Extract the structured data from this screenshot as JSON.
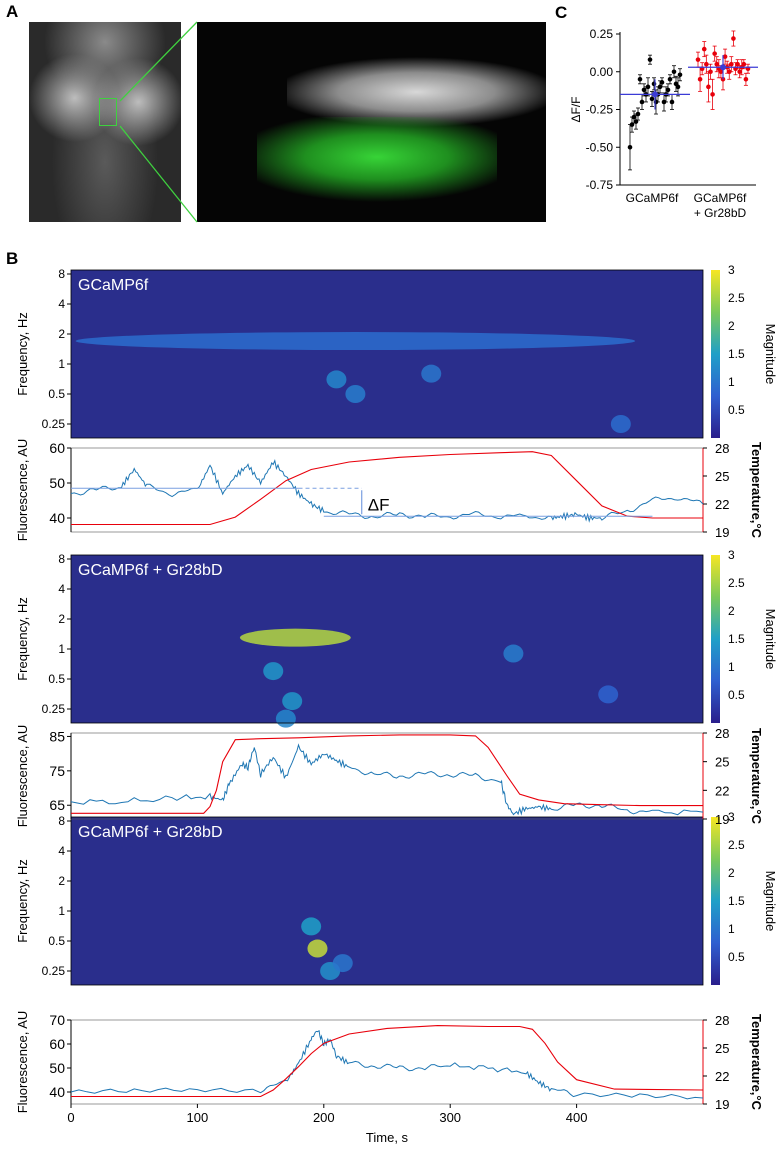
{
  "panel_labels": {
    "a": "A",
    "b": "B",
    "c": "C"
  },
  "colors": {
    "trace": "#1f77b4",
    "temperature": "#e8000b",
    "gcamp_points": "#000000",
    "gr28_points": "#e8000b",
    "mean_marker": "#3b3bd6",
    "microscopy_green": "#3fd13f",
    "spectrogram_low": "#2a2e8c",
    "spectrogram_high": "#f6e623"
  },
  "chart_data": [
    {
      "id": "c-dotplot",
      "type": "scatter",
      "ylabel": "ΔF/F",
      "ylim": [
        -0.75,
        0.25
      ],
      "yticks": [
        "0.25",
        "0.00",
        "-0.25",
        "-0.50",
        "-0.75"
      ],
      "ytick_values": [
        0.25,
        0.0,
        -0.25,
        -0.5,
        -0.75
      ],
      "categories": [
        "GCaMP6f",
        "GCaMP6f\n+ Gr28bD"
      ],
      "category_lines": [
        [
          "GCaMP6f"
        ],
        [
          "GCaMP6f",
          "+ Gr28bD"
        ]
      ],
      "series": [
        {
          "values": [
            -0.5,
            -0.35,
            -0.3,
            -0.33,
            -0.28,
            -0.05,
            -0.2,
            -0.12,
            -0.15,
            -0.1,
            0.08,
            -0.18,
            -0.08,
            -0.2,
            -0.15,
            -0.1,
            -0.07,
            -0.2,
            -0.15,
            -0.12,
            -0.05,
            -0.2,
            0.0,
            -0.08,
            -0.1,
            -0.02
          ],
          "errors": [
            0.15,
            0.05,
            0.04,
            0.05,
            0.04,
            0.03,
            0.05,
            0.04,
            0.05,
            0.06,
            0.03,
            0.05,
            0.04,
            0.08,
            0.05,
            0.04,
            0.03,
            0.06,
            0.05,
            0.04,
            0.03,
            0.05,
            0.04,
            0.05,
            0.06,
            0.04
          ],
          "mean": -0.15,
          "sd": 0.1
        },
        {
          "values": [
            0.08,
            -0.05,
            0.02,
            0.15,
            0.05,
            -0.1,
            0.0,
            -0.15,
            0.12,
            0.05,
            0.02,
            0.0,
            -0.05,
            0.1,
            0.03,
            0.0,
            0.05,
            0.22,
            0.02,
            0.05,
            0.0,
            0.03,
            0.05,
            -0.05,
            0.02
          ],
          "errors": [
            0.05,
            0.08,
            0.04,
            0.05,
            0.06,
            0.1,
            0.05,
            0.1,
            0.05,
            0.05,
            0.06,
            0.04,
            0.07,
            0.05,
            0.04,
            0.05,
            0.05,
            0.05,
            0.04,
            0.03,
            0.04,
            0.05,
            0.03,
            0.04,
            0.03
          ],
          "mean": 0.03,
          "sd": 0.08
        }
      ]
    },
    {
      "id": "b-spec-1",
      "type": "heatmap",
      "label": "GCaMP6f",
      "ylabel": "Frequency, Hz",
      "yticks": [
        "8",
        "4",
        "2",
        "1",
        "0.5",
        "0.25"
      ],
      "ytick_values": [
        8,
        4,
        2,
        1,
        0.5,
        0.25
      ],
      "ylog": true,
      "xlim": [
        0,
        500
      ],
      "colorbar": {
        "label": "Magnitude",
        "ticks": [
          "3",
          "2.5",
          "2",
          "1.5",
          "1",
          "0.5"
        ],
        "tick_values": [
          3,
          2.5,
          2,
          1.5,
          1,
          0.5
        ],
        "range": [
          0,
          3
        ]
      },
      "blobs": [
        {
          "t": 10,
          "t_end": 440,
          "f": 1.7,
          "magnitude": 0.9
        },
        {
          "t": 210,
          "f": 0.7,
          "magnitude": 1.2
        },
        {
          "t": 225,
          "f": 0.5,
          "magnitude": 1.1
        },
        {
          "t": 285,
          "f": 0.8,
          "magnitude": 1.0
        },
        {
          "t": 435,
          "f": 0.25,
          "magnitude": 0.9
        }
      ]
    },
    {
      "id": "b-trace-1",
      "type": "line",
      "ylabel": "Fluorescence, AU",
      "ylabel_right": "Temperature,°C",
      "ylim": [
        36,
        60
      ],
      "yticks": [
        "60",
        "50",
        "40"
      ],
      "ytick_values": [
        60,
        50,
        40
      ],
      "ylim_right": [
        19,
        28
      ],
      "yticks_right": [
        "28",
        "25",
        "22",
        "19"
      ],
      "ytick_values_right": [
        28,
        25,
        22,
        19
      ],
      "xlim": [
        0,
        500
      ],
      "annotation": "ΔF",
      "baseline_high": 48.5,
      "baseline_low": 40.5,
      "fluorescence": {
        "x": [
          0,
          20,
          40,
          50,
          60,
          80,
          100,
          110,
          120,
          130,
          140,
          150,
          160,
          170,
          180,
          190,
          200,
          220,
          240,
          260,
          280,
          300,
          320,
          340,
          360,
          380,
          390,
          400,
          410,
          420,
          440,
          460,
          480,
          500
        ],
        "y": [
          47,
          48,
          49,
          54,
          49,
          47,
          48,
          55,
          47,
          52,
          55,
          50,
          56,
          52,
          47,
          44,
          42,
          41,
          40.5,
          41,
          40.5,
          40.5,
          41,
          40.5,
          40.5,
          40,
          40.5,
          41,
          40,
          40,
          42,
          45,
          46,
          44
        ]
      },
      "temperature": {
        "x": [
          0,
          110,
          130,
          150,
          170,
          190,
          220,
          260,
          300,
          340,
          365,
          380,
          400,
          420,
          440,
          460,
          500
        ],
        "y": [
          19.8,
          19.8,
          20.6,
          22.5,
          24.5,
          25.7,
          26.5,
          27.0,
          27.3,
          27.5,
          27.6,
          27.2,
          24.5,
          21.8,
          20.7,
          20.5,
          20.5
        ]
      }
    },
    {
      "id": "b-spec-2",
      "type": "heatmap",
      "label": "GCaMP6f + Gr28bD",
      "ylabel": "Frequency, Hz",
      "yticks": [
        "8",
        "4",
        "2",
        "1",
        "0.5",
        "0.25"
      ],
      "ytick_values": [
        8,
        4,
        2,
        1,
        0.5,
        0.25
      ],
      "ylog": true,
      "xlim": [
        0,
        500
      ],
      "colorbar": {
        "label": "Magnitude",
        "ticks": [
          "3",
          "2.5",
          "2",
          "1.5",
          "1",
          "0.5"
        ],
        "tick_values": [
          3,
          2.5,
          2,
          1.5,
          1,
          0.5
        ],
        "range": [
          0,
          3
        ]
      },
      "blobs": [
        {
          "t": 140,
          "t_end": 215,
          "f": 1.3,
          "magnitude": 2.6
        },
        {
          "t": 160,
          "f": 0.6,
          "magnitude": 1.4
        },
        {
          "t": 175,
          "f": 0.3,
          "magnitude": 1.4
        },
        {
          "t": 170,
          "f": 0.2,
          "magnitude": 1.2
        },
        {
          "t": 350,
          "f": 0.9,
          "magnitude": 1.1
        },
        {
          "t": 425,
          "f": 0.35,
          "magnitude": 0.8
        }
      ]
    },
    {
      "id": "b-trace-2",
      "type": "line",
      "ylabel": "Fluorescence, AU",
      "ylabel_right": "Temperature,°C",
      "ylim": [
        61,
        86
      ],
      "yticks": [
        "85",
        "75",
        "65"
      ],
      "ytick_values": [
        85,
        75,
        65
      ],
      "ylim_right": [
        19,
        28
      ],
      "yticks_right": [
        "28",
        "25",
        "22",
        "19"
      ],
      "ytick_values_right": [
        28,
        25,
        22,
        19
      ],
      "xlim": [
        0,
        500
      ],
      "fluorescence": {
        "x": [
          0,
          40,
          80,
          110,
          120,
          125,
          135,
          140,
          145,
          150,
          160,
          170,
          180,
          190,
          200,
          210,
          220,
          240,
          260,
          280,
          300,
          320,
          340,
          345,
          350,
          360,
          370,
          380,
          400,
          420,
          440,
          460,
          500
        ],
        "y": [
          66,
          66,
          67,
          67.5,
          66.5,
          71,
          77,
          76,
          82,
          74,
          79,
          73,
          82,
          77,
          80,
          78,
          76,
          74,
          73.5,
          74,
          74,
          73.5,
          72,
          65,
          62.5,
          64,
          64.5,
          64,
          65,
          65,
          63.5,
          63,
          63
        ]
      },
      "temperature": {
        "x": [
          0,
          105,
          110,
          115,
          120,
          130,
          150,
          180,
          220,
          260,
          300,
          320,
          330,
          345,
          355,
          370,
          390,
          420,
          450,
          500
        ],
        "y": [
          19.6,
          19.6,
          20.3,
          22,
          25,
          27.3,
          27.4,
          27.5,
          27.7,
          27.8,
          27.8,
          27.7,
          26.5,
          23.5,
          21.6,
          21.0,
          20.6,
          20.5,
          20.4,
          20.4
        ]
      }
    },
    {
      "id": "b-spec-3",
      "type": "heatmap",
      "label": "GCaMP6f + Gr28bD",
      "ylabel": "Frequency, Hz",
      "yticks": [
        "8",
        "4",
        "2",
        "1",
        "0.5",
        "0.25"
      ],
      "ytick_values": [
        8,
        4,
        2,
        1,
        0.5,
        0.25
      ],
      "ylog": true,
      "xlim": [
        0,
        500
      ],
      "colorbar": {
        "label": "Magnitude",
        "ticks": [
          "3",
          "2.5",
          "2",
          "1.5",
          "1",
          "0.5"
        ],
        "tick_values": [
          3,
          2.5,
          2,
          1.5,
          1,
          0.5
        ],
        "range": [
          0,
          3
        ]
      },
      "blobs": [
        {
          "t": 195,
          "f": 0.42,
          "magnitude": 2.7
        },
        {
          "t": 190,
          "f": 0.7,
          "magnitude": 1.5
        },
        {
          "t": 205,
          "f": 0.25,
          "magnitude": 1.3
        },
        {
          "t": 215,
          "f": 0.3,
          "magnitude": 1.0
        }
      ]
    },
    {
      "id": "b-trace-3",
      "type": "line",
      "ylabel": "Fluorescence, AU",
      "ylabel_right": "Temperature,°C",
      "xlabel": "Time, s",
      "ylim": [
        35,
        70
      ],
      "yticks": [
        "70",
        "60",
        "50",
        "40"
      ],
      "ytick_values": [
        70,
        60,
        50,
        40
      ],
      "ylim_right": [
        19,
        28
      ],
      "yticks_right": [
        "28",
        "25",
        "22",
        "19"
      ],
      "ytick_values_right": [
        28,
        25,
        22,
        19
      ],
      "xlim": [
        0,
        500
      ],
      "xticks": [
        "0",
        "100",
        "200",
        "300",
        "400"
      ],
      "xtick_values": [
        0,
        100,
        200,
        300,
        400
      ],
      "fluorescence": {
        "x": [
          0,
          50,
          100,
          150,
          170,
          180,
          190,
          195,
          200,
          205,
          210,
          220,
          240,
          260,
          280,
          300,
          330,
          360,
          370,
          380,
          400,
          450,
          500
        ],
        "y": [
          40,
          40,
          41,
          41,
          44,
          52,
          62,
          66,
          60,
          62,
          55,
          52,
          51,
          50,
          50,
          51,
          50,
          48,
          44,
          41,
          39,
          38,
          37.5
        ]
      },
      "temperature": {
        "x": [
          0,
          150,
          160,
          170,
          180,
          190,
          200,
          220,
          250,
          290,
          330,
          355,
          365,
          375,
          385,
          400,
          430,
          500
        ],
        "y": [
          19.8,
          19.8,
          20.5,
          21.7,
          23,
          24.4,
          25.5,
          26.5,
          27.1,
          27.4,
          27.3,
          27.3,
          27.0,
          25.5,
          23.5,
          21.6,
          20.6,
          20.5
        ]
      }
    }
  ]
}
